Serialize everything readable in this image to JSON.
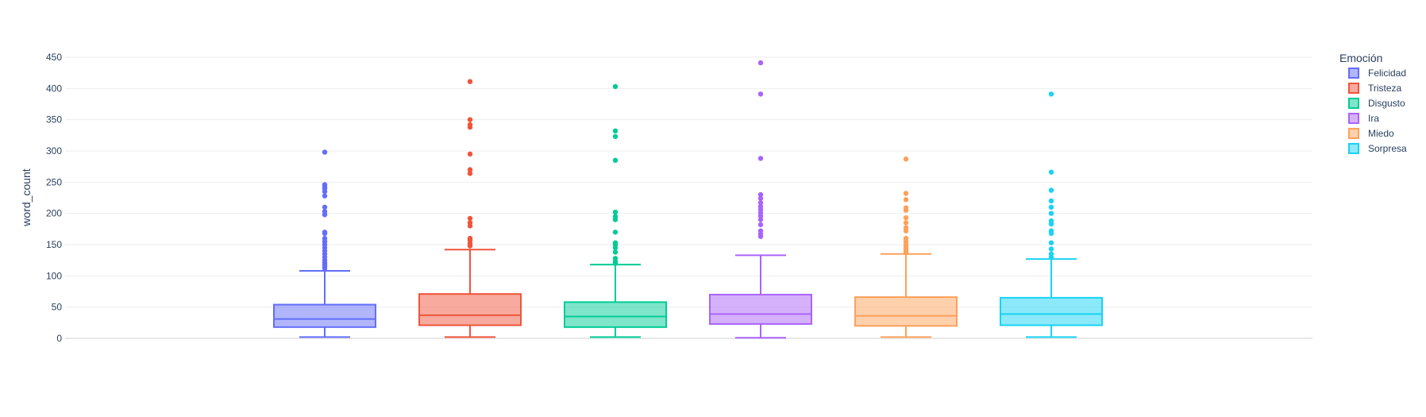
{
  "chart_data": {
    "type": "box",
    "ylabel": "word_count",
    "xlabel": "",
    "ylim": [
      0,
      450
    ],
    "yticks": [
      0,
      50,
      100,
      150,
      200,
      250,
      300,
      350,
      400,
      450
    ],
    "grid": true,
    "legend": {
      "title": "Emoción",
      "placement": "right"
    },
    "series": [
      {
        "name": "Felicidad",
        "color": "#636efa",
        "min": 2,
        "q1": 18,
        "median": 31,
        "q3": 54,
        "max": 108,
        "outliers": [
          112,
          115,
          118,
          121,
          125,
          130,
          135,
          140,
          145,
          150,
          155,
          160,
          168,
          170,
          198,
          203,
          210,
          228,
          235,
          240,
          243,
          246,
          298
        ]
      },
      {
        "name": "Tristeza",
        "color": "#ef553b",
        "min": 2,
        "q1": 21,
        "median": 37,
        "q3": 71,
        "max": 142,
        "outliers": [
          148,
          152,
          157,
          160,
          180,
          185,
          192,
          264,
          270,
          295,
          338,
          342,
          350,
          411
        ]
      },
      {
        "name": "Disgusto",
        "color": "#00cc96",
        "min": 2,
        "q1": 18,
        "median": 35,
        "q3": 58,
        "max": 118,
        "outliers": [
          120,
          123,
          128,
          138,
          145,
          150,
          153,
          170,
          190,
          195,
          202,
          285,
          323,
          332,
          403
        ]
      },
      {
        "name": "Ira",
        "color": "#ab63fa",
        "min": 1,
        "q1": 23,
        "median": 39,
        "q3": 70,
        "max": 133,
        "outliers": [
          163,
          167,
          172,
          182,
          190,
          196,
          201,
          206,
          211,
          217,
          224,
          230,
          288,
          391,
          441
        ]
      },
      {
        "name": "Miedo",
        "color": "#ffa15a",
        "min": 2,
        "q1": 20,
        "median": 36,
        "q3": 66,
        "max": 135,
        "outliers": [
          137,
          140,
          143,
          146,
          150,
          155,
          160,
          172,
          177,
          185,
          193,
          205,
          209,
          222,
          232,
          287
        ]
      },
      {
        "name": "Sorpresa",
        "color": "#19d3f3",
        "min": 2,
        "q1": 21,
        "median": 39,
        "q3": 65,
        "max": 127,
        "outliers": [
          130,
          135,
          143,
          153,
          168,
          172,
          183,
          188,
          200,
          210,
          220,
          237,
          266,
          391
        ]
      }
    ]
  }
}
